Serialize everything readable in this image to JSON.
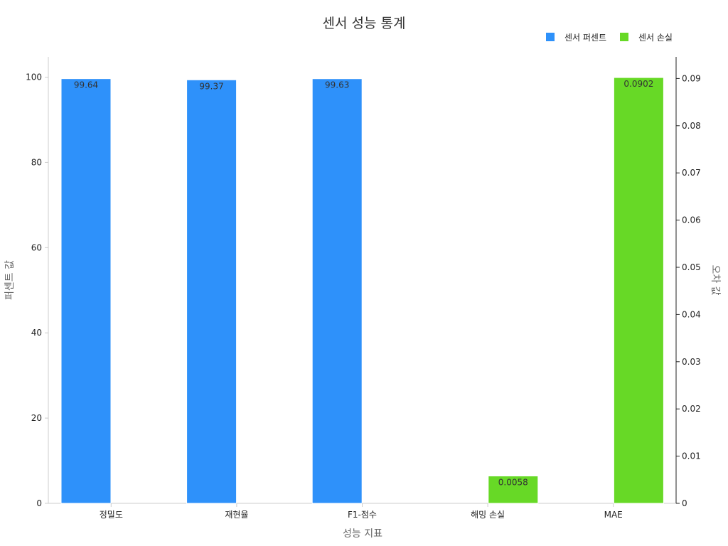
{
  "chart_data": {
    "type": "bar",
    "title": "센서 성능 통계",
    "categories": [
      "정밀도",
      "재현율",
      "F1-점수",
      "해밍 손실",
      "MAE"
    ],
    "xlabel": "성능 지표",
    "ylabel_left": "퍼센트 값",
    "ylabel_right": "오차 값",
    "ylim_left": [
      0,
      105
    ],
    "ylim_right": [
      0,
      0.095
    ],
    "yticks_left": [
      "0",
      "20",
      "40",
      "60",
      "80",
      "100"
    ],
    "yticks_right": [
      "0",
      "0.01",
      "0.02",
      "0.03",
      "0.04",
      "0.05",
      "0.06",
      "0.07",
      "0.08",
      "0.09"
    ],
    "legend_position": "top-right",
    "grid": false,
    "series": [
      {
        "name": "센서 퍼센트",
        "axis": "left",
        "color": "#2e91fa",
        "values": [
          99.64,
          99.37,
          99.63,
          null,
          null
        ],
        "labels": [
          "99.64",
          "99.37",
          "99.63",
          "",
          ""
        ]
      },
      {
        "name": "센서 손실",
        "axis": "right",
        "color": "#67d926",
        "values": [
          null,
          null,
          null,
          0.0058,
          0.0902
        ],
        "labels": [
          "",
          "",
          "",
          "0.0058",
          "0.0902"
        ]
      }
    ]
  }
}
